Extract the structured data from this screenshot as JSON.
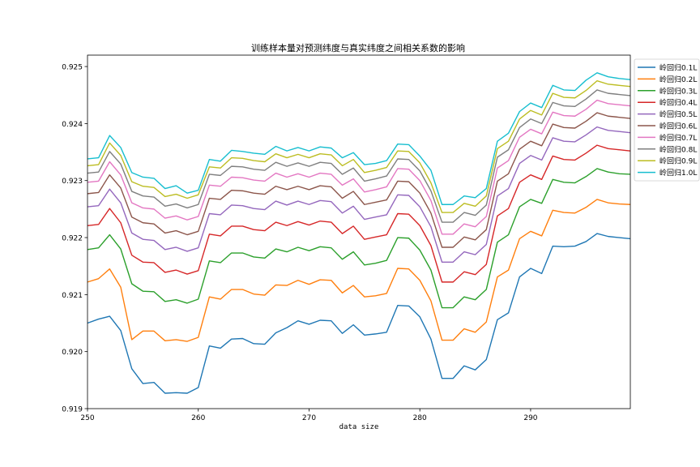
{
  "chart_data": {
    "type": "line",
    "title": "训练样本量对预测纬度与真实纬度之间相关系数的影响",
    "xlabel": "data size",
    "ylabel": "",
    "xlim": [
      250,
      299
    ],
    "ylim": [
      0.919,
      0.9252
    ],
    "x_ticks": [
      250,
      260,
      270,
      280,
      290
    ],
    "y_ticks": [
      "0.919",
      "0.920",
      "0.921",
      "0.922",
      "0.923",
      "0.924",
      "0.925"
    ],
    "legend_position": "outside-top-right",
    "grid": false,
    "x": [
      250,
      251,
      252,
      253,
      254,
      255,
      256,
      257,
      258,
      259,
      260,
      261,
      262,
      263,
      264,
      265,
      266,
      267,
      268,
      269,
      270,
      271,
      272,
      273,
      274,
      275,
      276,
      277,
      278,
      279,
      280,
      281,
      282,
      283,
      284,
      285,
      286,
      287,
      288,
      289,
      290,
      291,
      292,
      293,
      294,
      295,
      296,
      297,
      298,
      299
    ],
    "series": [
      {
        "name": "岭回归0.1L",
        "color": "#1f77b4",
        "values": [
          0.9205,
          0.92057,
          0.92062,
          0.92037,
          0.9197,
          0.91944,
          0.91946,
          0.91927,
          0.91928,
          0.91927,
          0.91937,
          0.9201,
          0.92006,
          0.92022,
          0.92023,
          0.92014,
          0.92013,
          0.92033,
          0.92042,
          0.92054,
          0.92048,
          0.92055,
          0.92054,
          0.92032,
          0.92047,
          0.92029,
          0.92031,
          0.92034,
          0.92081,
          0.9208,
          0.92061,
          0.92022,
          0.91953,
          0.91953,
          0.91975,
          0.91968,
          0.91986,
          0.92056,
          0.92068,
          0.92131,
          0.92146,
          0.92137,
          0.92185,
          0.92184,
          0.92185,
          0.92193,
          0.92207,
          0.92202,
          0.922,
          0.92198
        ]
      },
      {
        "name": "岭回归0.2L",
        "color": "#ff7f0e",
        "values": [
          0.92122,
          0.92128,
          0.92145,
          0.92113,
          0.92021,
          0.92036,
          0.92036,
          0.92019,
          0.92021,
          0.92018,
          0.92025,
          0.92096,
          0.92092,
          0.92109,
          0.92109,
          0.92101,
          0.92099,
          0.92117,
          0.92116,
          0.92125,
          0.92118,
          0.92126,
          0.92125,
          0.92103,
          0.92116,
          0.92096,
          0.92098,
          0.92102,
          0.92146,
          0.92145,
          0.92125,
          0.92089,
          0.9202,
          0.9202,
          0.9204,
          0.92034,
          0.92052,
          0.92131,
          0.92143,
          0.92198,
          0.92211,
          0.92203,
          0.92248,
          0.92244,
          0.92243,
          0.92253,
          0.92267,
          0.92261,
          0.92259,
          0.92258
        ]
      },
      {
        "name": "岭回归0.3L",
        "color": "#2ca02c",
        "values": [
          0.92179,
          0.92182,
          0.92205,
          0.9218,
          0.92119,
          0.92106,
          0.92105,
          0.92088,
          0.92091,
          0.92085,
          0.92092,
          0.92159,
          0.92156,
          0.92173,
          0.92173,
          0.92166,
          0.92164,
          0.9218,
          0.92175,
          0.92183,
          0.92177,
          0.92184,
          0.92182,
          0.92162,
          0.92175,
          0.92152,
          0.92155,
          0.9216,
          0.922,
          0.92199,
          0.92178,
          0.92143,
          0.92077,
          0.92077,
          0.92096,
          0.92091,
          0.92109,
          0.92192,
          0.92205,
          0.92254,
          0.92267,
          0.9226,
          0.92302,
          0.92297,
          0.92296,
          0.92307,
          0.92321,
          0.92315,
          0.92312,
          0.92311
        ]
      },
      {
        "name": "岭回归0.4L",
        "color": "#d62728",
        "values": [
          0.92221,
          0.92223,
          0.92251,
          0.92226,
          0.92169,
          0.92157,
          0.92156,
          0.92139,
          0.92143,
          0.92136,
          0.92142,
          0.92206,
          0.92203,
          0.9222,
          0.9222,
          0.92214,
          0.92212,
          0.92227,
          0.92221,
          0.92228,
          0.92222,
          0.92229,
          0.92227,
          0.92207,
          0.9222,
          0.92197,
          0.92201,
          0.92205,
          0.92242,
          0.92241,
          0.92221,
          0.92186,
          0.92122,
          0.92122,
          0.9214,
          0.92135,
          0.92153,
          0.92238,
          0.92251,
          0.92297,
          0.9231,
          0.92302,
          0.92343,
          0.92337,
          0.92336,
          0.92348,
          0.92362,
          0.92356,
          0.92354,
          0.92352
        ]
      },
      {
        "name": "岭回归0.5L",
        "color": "#9467bd",
        "values": [
          0.92254,
          0.92256,
          0.92285,
          0.92261,
          0.92208,
          0.92197,
          0.92195,
          0.92179,
          0.92183,
          0.92176,
          0.92182,
          0.92242,
          0.9224,
          0.92257,
          0.92256,
          0.92251,
          0.92249,
          0.92264,
          0.92257,
          0.92264,
          0.92258,
          0.92265,
          0.92263,
          0.92243,
          0.92255,
          0.92232,
          0.92236,
          0.9224,
          0.92275,
          0.92274,
          0.92254,
          0.92219,
          0.92157,
          0.92157,
          0.92175,
          0.9217,
          0.92188,
          0.92273,
          0.92286,
          0.9233,
          0.92344,
          0.92336,
          0.92375,
          0.92369,
          0.92368,
          0.9238,
          0.92394,
          0.92388,
          0.92386,
          0.92384
        ]
      },
      {
        "name": "岭回归0.6L",
        "color": "#8c564b",
        "values": [
          0.92277,
          0.92279,
          0.9231,
          0.92287,
          0.92236,
          0.92226,
          0.92224,
          0.92208,
          0.92212,
          0.92205,
          0.92211,
          0.92269,
          0.92267,
          0.92283,
          0.92282,
          0.92278,
          0.92276,
          0.9229,
          0.92284,
          0.9229,
          0.92284,
          0.92291,
          0.92289,
          0.92269,
          0.92281,
          0.92258,
          0.92262,
          0.92266,
          0.92299,
          0.92298,
          0.92278,
          0.92243,
          0.92183,
          0.92183,
          0.92201,
          0.92196,
          0.92214,
          0.92299,
          0.92312,
          0.92355,
          0.92369,
          0.92361,
          0.92399,
          0.92393,
          0.92392,
          0.92404,
          0.92419,
          0.92413,
          0.92411,
          0.92409
        ]
      },
      {
        "name": "岭回归0.7L",
        "color": "#e377c2",
        "values": [
          0.92297,
          0.92299,
          0.92333,
          0.9231,
          0.92261,
          0.92252,
          0.9225,
          0.92234,
          0.92238,
          0.92231,
          0.92237,
          0.92292,
          0.9229,
          0.92306,
          0.92305,
          0.92301,
          0.92299,
          0.92313,
          0.92306,
          0.92312,
          0.92306,
          0.92313,
          0.92311,
          0.92292,
          0.92303,
          0.9228,
          0.92284,
          0.92289,
          0.92321,
          0.9232,
          0.923,
          0.92265,
          0.92206,
          0.92206,
          0.92224,
          0.92219,
          0.92237,
          0.92322,
          0.92335,
          0.92376,
          0.9239,
          0.92382,
          0.9242,
          0.92414,
          0.92413,
          0.92425,
          0.92441,
          0.92435,
          0.92433,
          0.92431
        ]
      },
      {
        "name": "岭回归0.8L",
        "color": "#7f7f7f",
        "values": [
          0.92313,
          0.92315,
          0.92351,
          0.92329,
          0.92281,
          0.92273,
          0.92271,
          0.92255,
          0.92259,
          0.92252,
          0.92258,
          0.92311,
          0.92309,
          0.92325,
          0.92324,
          0.9232,
          0.92318,
          0.92332,
          0.92325,
          0.92331,
          0.92325,
          0.92332,
          0.9233,
          0.92311,
          0.92322,
          0.92299,
          0.92303,
          0.92308,
          0.92338,
          0.92337,
          0.92317,
          0.92282,
          0.92227,
          0.92227,
          0.92244,
          0.92239,
          0.92257,
          0.92341,
          0.92354,
          0.92393,
          0.92408,
          0.924,
          0.92437,
          0.92431,
          0.9243,
          0.92443,
          0.92459,
          0.92453,
          0.92451,
          0.92449
        ]
      },
      {
        "name": "岭回归0.9L",
        "color": "#bcbd22",
        "values": [
          0.92326,
          0.92328,
          0.92366,
          0.92344,
          0.92298,
          0.9229,
          0.92288,
          0.92272,
          0.92276,
          0.92269,
          0.92275,
          0.92324,
          0.92322,
          0.9234,
          0.92339,
          0.92335,
          0.92333,
          0.92347,
          0.9234,
          0.92346,
          0.9234,
          0.92347,
          0.92345,
          0.92326,
          0.92337,
          0.92314,
          0.92318,
          0.92323,
          0.92352,
          0.92351,
          0.92331,
          0.92296,
          0.92244,
          0.92244,
          0.9226,
          0.92255,
          0.92273,
          0.92356,
          0.92369,
          0.92408,
          0.92423,
          0.92415,
          0.92453,
          0.92446,
          0.92445,
          0.92458,
          0.92475,
          0.92469,
          0.92467,
          0.92465
        ]
      },
      {
        "name": "岭回归1.0L",
        "color": "#17becf",
        "values": [
          0.92338,
          0.9234,
          0.92379,
          0.92358,
          0.92314,
          0.92306,
          0.92304,
          0.92286,
          0.92291,
          0.92278,
          0.92283,
          0.92337,
          0.92334,
          0.92353,
          0.92351,
          0.92348,
          0.92346,
          0.9236,
          0.92352,
          0.92358,
          0.92352,
          0.92359,
          0.92357,
          0.9234,
          0.92349,
          0.92328,
          0.9233,
          0.92335,
          0.92364,
          0.92363,
          0.92343,
          0.92318,
          0.92258,
          0.92258,
          0.92273,
          0.9227,
          0.92286,
          0.92369,
          0.92383,
          0.92421,
          0.92436,
          0.92428,
          0.92467,
          0.92459,
          0.92458,
          0.92476,
          0.92489,
          0.92482,
          0.92479,
          0.92477
        ]
      }
    ]
  }
}
